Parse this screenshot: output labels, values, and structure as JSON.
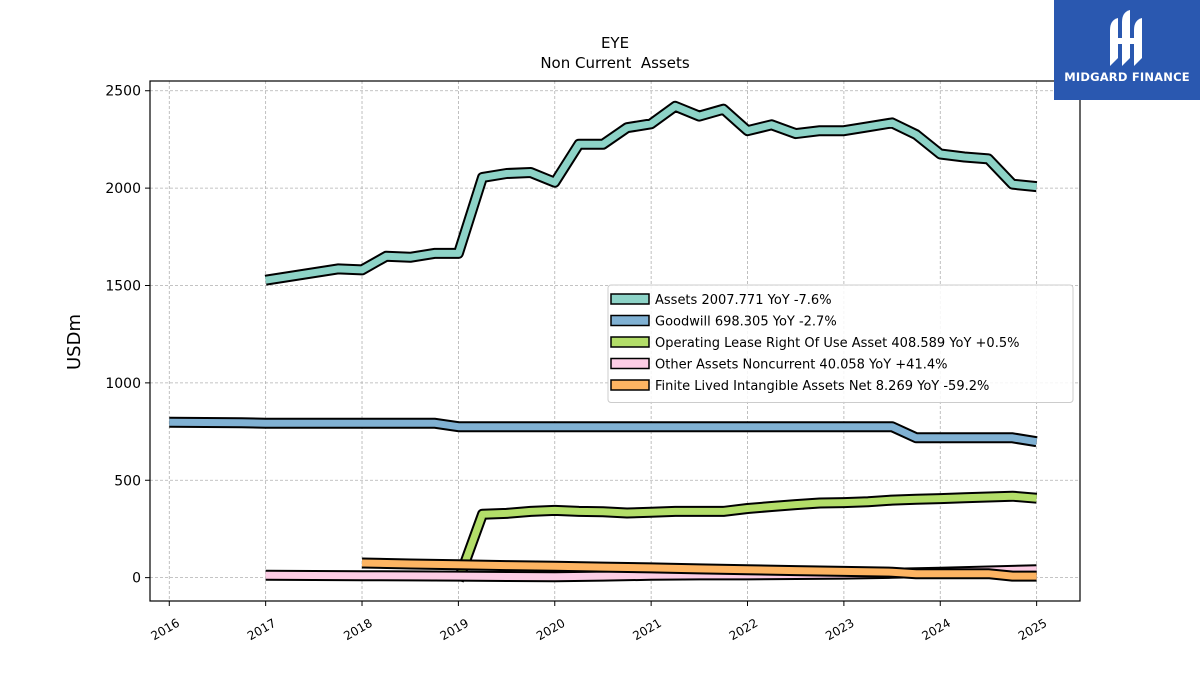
{
  "logo": {
    "text": "MIDGARD FINANCE",
    "background": "#2a58b0"
  },
  "chart_data": {
    "type": "line",
    "title": "EYE",
    "subtitle": "Non Current  Assets",
    "xlabel": "",
    "ylabel": "USDm",
    "xlim": [
      2015.8,
      2025.45
    ],
    "ylim": [
      -120,
      2550
    ],
    "x_ticks": [
      2016,
      2017,
      2018,
      2019,
      2020,
      2021,
      2022,
      2023,
      2024,
      2025
    ],
    "x_tick_labels": [
      "2016",
      "2017",
      "2018",
      "2019",
      "2020",
      "2021",
      "2022",
      "2023",
      "2024",
      "2025"
    ],
    "y_ticks": [
      0,
      500,
      1000,
      1500,
      2000,
      2500
    ],
    "y_tick_labels": [
      "0",
      "500",
      "1000",
      "1500",
      "2000",
      "2500"
    ],
    "grid": true,
    "legend_position": "center-right",
    "series": [
      {
        "name": "Assets  2007.771 YoY -7.6%",
        "color": "#8dd3c7",
        "x": [
          2017.0,
          2017.75,
          2018.0,
          2018.25,
          2018.5,
          2018.75,
          2019.0,
          2019.25,
          2019.5,
          2019.75,
          2020.0,
          2020.25,
          2020.5,
          2020.75,
          2021.0,
          2021.25,
          2021.5,
          2021.75,
          2022.0,
          2022.25,
          2022.5,
          2022.75,
          2023.0,
          2023.25,
          2023.5,
          2023.75,
          2024.0,
          2024.25,
          2024.5,
          2024.75,
          2025.0
        ],
        "y": [
          1527,
          1585,
          1580,
          1650,
          1645,
          1665,
          1665,
          2055,
          2075,
          2080,
          2030,
          2225,
          2225,
          2310,
          2330,
          2420,
          2370,
          2405,
          2295,
          2325,
          2280,
          2295,
          2295,
          2315,
          2335,
          2275,
          2175,
          2160,
          2150,
          2020,
          2008
        ]
      },
      {
        "name": "Goodwill  698.305 YoY -2.7%",
        "color": "#80b1d3",
        "x": [
          2016.0,
          2016.75,
          2017.0,
          2017.75,
          2018.0,
          2018.75,
          2019.0,
          2019.75,
          2020.0,
          2020.75,
          2021.0,
          2021.75,
          2022.0,
          2022.75,
          2023.0,
          2023.5,
          2023.75,
          2024.0,
          2024.5,
          2024.75,
          2025.0
        ],
        "y": [
          798,
          795,
          793,
          793,
          793,
          793,
          775,
          775,
          775,
          775,
          775,
          775,
          775,
          775,
          775,
          775,
          718,
          718,
          718,
          718,
          698
        ]
      },
      {
        "name": "Operating Lease Right Of Use Asset  408.589 YoY +0.5%",
        "color": "#b3de69",
        "x": [
          2019.0,
          2019.25,
          2019.5,
          2019.75,
          2020.0,
          2020.25,
          2020.5,
          2020.75,
          2021.0,
          2021.25,
          2021.5,
          2021.75,
          2022.0,
          2022.25,
          2022.5,
          2022.75,
          2023.0,
          2023.25,
          2023.5,
          2023.75,
          2024.0,
          2024.25,
          2024.5,
          2024.75,
          2025.0
        ],
        "y": [
          -15,
          325,
          330,
          340,
          345,
          340,
          338,
          332,
          336,
          340,
          340,
          340,
          355,
          365,
          375,
          383,
          385,
          390,
          398,
          402,
          406,
          410,
          414,
          418,
          408
        ]
      },
      {
        "name": "Other Assets Noncurrent  40.058 YoY +41.4%",
        "color": "#fccde5",
        "x": [
          2017.0,
          2017.5,
          2018.0,
          2018.5,
          2019.0,
          2019.5,
          2020.0,
          2020.5,
          2021.0,
          2021.5,
          2022.0,
          2022.5,
          2023.0,
          2023.5,
          2024.0,
          2024.5,
          2025.0
        ],
        "y": [
          12,
          11,
          10,
          9,
          8,
          6,
          5,
          8,
          12,
          14,
          14,
          16,
          18,
          22,
          28,
          34,
          40
        ]
      },
      {
        "name": "Finite Lived Intangible Assets Net  8.269 YoY -59.2%",
        "color": "#fdb462",
        "x": [
          2018.0,
          2018.5,
          2019.0,
          2019.5,
          2020.0,
          2020.5,
          2021.0,
          2021.5,
          2022.0,
          2022.5,
          2023.0,
          2023.5,
          2023.75,
          2024.0,
          2024.5,
          2024.75,
          2025.0
        ],
        "y": [
          75,
          70,
          66,
          62,
          58,
          54,
          50,
          45,
          40,
          36,
          32,
          28,
          20,
          20,
          20,
          8,
          8
        ]
      }
    ]
  }
}
